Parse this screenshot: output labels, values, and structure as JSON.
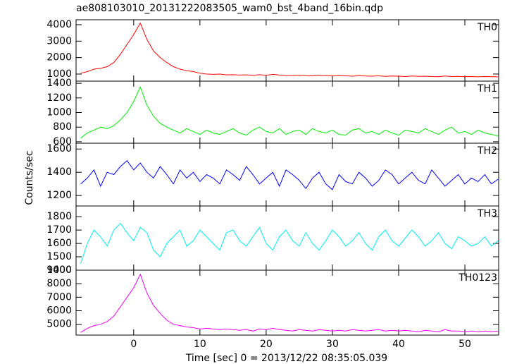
{
  "chart_data": [
    {
      "type": "line",
      "title": "ae808103010_20131222083505_wam0_bst_4band_16bin.qdp",
      "label": "TH0",
      "color": "#ff0000",
      "x": [
        -8,
        -7,
        -6,
        -5,
        -4,
        -3,
        -2,
        -1,
        0,
        1,
        2,
        3,
        4,
        5,
        6,
        7,
        8,
        9,
        10,
        11,
        12,
        13,
        14,
        15,
        16,
        17,
        18,
        19,
        20,
        21,
        22,
        23,
        24,
        25,
        26,
        27,
        28,
        29,
        30,
        31,
        32,
        33,
        34,
        35,
        36,
        37,
        38,
        39,
        40,
        41,
        42,
        43,
        44,
        45,
        46,
        47,
        48,
        49,
        50,
        51,
        52,
        53,
        54,
        55
      ],
      "values": [
        1050,
        1150,
        1300,
        1350,
        1450,
        1700,
        2200,
        2800,
        3400,
        4100,
        3100,
        2400,
        2000,
        1700,
        1450,
        1300,
        1200,
        1150,
        1050,
        1000,
        980,
        1000,
        950,
        960,
        940,
        950,
        920,
        960,
        930,
        980,
        940,
        910,
        900,
        930,
        900,
        890,
        920,
        900,
        880,
        910,
        890,
        870,
        900,
        880,
        870,
        890,
        860,
        880,
        870,
        850,
        880,
        860,
        870,
        850,
        840,
        880,
        850,
        860,
        840,
        850,
        830,
        850,
        840,
        830
      ],
      "ylim": [
        570,
        4300
      ],
      "yticks": [
        1000,
        2000,
        3000,
        4000
      ]
    },
    {
      "type": "line",
      "label": "TH1",
      "color": "#00ee00",
      "x": [
        -8,
        -7,
        -6,
        -5,
        -4,
        -3,
        -2,
        -1,
        0,
        1,
        2,
        3,
        4,
        5,
        6,
        7,
        8,
        9,
        10,
        11,
        12,
        13,
        14,
        15,
        16,
        17,
        18,
        19,
        20,
        21,
        22,
        23,
        24,
        25,
        26,
        27,
        28,
        29,
        30,
        31,
        32,
        33,
        34,
        35,
        36,
        37,
        38,
        39,
        40,
        41,
        42,
        43,
        44,
        45,
        46,
        47,
        48,
        49,
        50,
        51,
        52,
        53,
        54,
        55
      ],
      "values": [
        650,
        720,
        760,
        800,
        780,
        820,
        900,
        1000,
        1150,
        1350,
        1100,
        950,
        850,
        800,
        760,
        720,
        780,
        740,
        700,
        760,
        720,
        700,
        740,
        780,
        720,
        690,
        760,
        800,
        740,
        720,
        780,
        700,
        740,
        760,
        700,
        780,
        740,
        720,
        760,
        700,
        690,
        760,
        780,
        720,
        740,
        700,
        760,
        720,
        690,
        760,
        740,
        720,
        780,
        740,
        700,
        760,
        800,
        720,
        740,
        700,
        760,
        720,
        700,
        680
      ],
      "ylim": [
        580,
        1430
      ],
      "yticks": [
        600,
        800,
        1000,
        1200,
        1400
      ]
    },
    {
      "type": "line",
      "label": "TH2",
      "color": "#0000ff",
      "ylabel": "Counts/sec",
      "x": [
        -8,
        -7,
        -6,
        -5,
        -4,
        -3,
        -2,
        -1,
        0,
        1,
        2,
        3,
        4,
        5,
        6,
        7,
        8,
        9,
        10,
        11,
        12,
        13,
        14,
        15,
        16,
        17,
        18,
        19,
        20,
        21,
        22,
        23,
        24,
        25,
        26,
        27,
        28,
        29,
        30,
        31,
        32,
        33,
        34,
        35,
        36,
        37,
        38,
        39,
        40,
        41,
        42,
        43,
        44,
        45,
        46,
        47,
        48,
        49,
        50,
        51,
        52,
        53,
        54,
        55
      ],
      "values": [
        1300,
        1350,
        1420,
        1280,
        1400,
        1380,
        1450,
        1500,
        1420,
        1480,
        1400,
        1350,
        1450,
        1380,
        1300,
        1420,
        1350,
        1400,
        1320,
        1380,
        1350,
        1300,
        1420,
        1380,
        1330,
        1450,
        1380,
        1300,
        1350,
        1400,
        1280,
        1420,
        1380,
        1330,
        1260,
        1350,
        1400,
        1300,
        1250,
        1380,
        1320,
        1300,
        1400,
        1350,
        1280,
        1330,
        1420,
        1380,
        1300,
        1350,
        1400,
        1330,
        1300,
        1420,
        1350,
        1280,
        1330,
        1380,
        1300,
        1350,
        1320,
        1380,
        1300,
        1340
      ],
      "ylim": [
        1110,
        1650
      ],
      "yticks": [
        1200,
        1400,
        1600
      ]
    },
    {
      "type": "line",
      "label": "TH3",
      "color": "#00eeee",
      "x": [
        -8,
        -7,
        -6,
        -5,
        -4,
        -3,
        -2,
        -1,
        0,
        1,
        2,
        3,
        4,
        5,
        6,
        7,
        8,
        9,
        10,
        11,
        12,
        13,
        14,
        15,
        16,
        17,
        18,
        19,
        20,
        21,
        22,
        23,
        24,
        25,
        26,
        27,
        28,
        29,
        30,
        31,
        32,
        33,
        34,
        35,
        36,
        37,
        38,
        39,
        40,
        41,
        42,
        43,
        44,
        45,
        46,
        47,
        48,
        49,
        50,
        51,
        52,
        53,
        54,
        55
      ],
      "values": [
        1450,
        1600,
        1700,
        1650,
        1580,
        1700,
        1750,
        1680,
        1620,
        1720,
        1680,
        1550,
        1500,
        1600,
        1650,
        1700,
        1580,
        1620,
        1700,
        1650,
        1600,
        1550,
        1680,
        1700,
        1620,
        1580,
        1650,
        1720,
        1600,
        1550,
        1650,
        1700,
        1620,
        1580,
        1680,
        1600,
        1550,
        1620,
        1700,
        1650,
        1580,
        1620,
        1680,
        1600,
        1550,
        1650,
        1700,
        1620,
        1580,
        1640,
        1700,
        1650,
        1580,
        1620,
        1680,
        1600,
        1560,
        1650,
        1620,
        1580,
        1600,
        1650,
        1580,
        1620
      ],
      "ylim": [
        1400,
        1880
      ],
      "yticks": [
        1400,
        1500,
        1600,
        1700,
        1800
      ]
    },
    {
      "type": "line",
      "label": "TH0123",
      "color": "#ee00ee",
      "xlabel": "Time [sec] 0 = 2013/12/22 08:35:05.039",
      "x": [
        -8,
        -7,
        -6,
        -5,
        -4,
        -3,
        -2,
        -1,
        0,
        1,
        2,
        3,
        4,
        5,
        6,
        7,
        8,
        9,
        10,
        11,
        12,
        13,
        14,
        15,
        16,
        17,
        18,
        19,
        20,
        21,
        22,
        23,
        24,
        25,
        26,
        27,
        28,
        29,
        30,
        31,
        32,
        33,
        34,
        35,
        36,
        37,
        38,
        39,
        40,
        41,
        42,
        43,
        44,
        45,
        46,
        47,
        48,
        49,
        50,
        51,
        52,
        53,
        54,
        55
      ],
      "values": [
        4400,
        4700,
        4900,
        5000,
        5200,
        5600,
        6300,
        7000,
        7700,
        8700,
        7300,
        6400,
        5800,
        5300,
        5000,
        4900,
        4800,
        4750,
        4650,
        4700,
        4650,
        4600,
        4650,
        4600,
        4550,
        4600,
        4500,
        4650,
        4600,
        4700,
        4600,
        4550,
        4500,
        4600,
        4550,
        4500,
        4600,
        4550,
        4500,
        4550,
        4500,
        4600,
        4550,
        4500,
        4550,
        4600,
        4500,
        4550,
        4500,
        4550,
        4500,
        4450,
        4550,
        4500,
        4450,
        4600,
        4500,
        4500,
        4450,
        4500,
        4450,
        4500,
        4450,
        4500
      ],
      "ylim": [
        4200,
        9000
      ],
      "yticks": [
        5000,
        6000,
        7000,
        8000,
        9000
      ],
      "xlim": [
        -8.7,
        55.1
      ],
      "xticks": [
        0,
        10,
        20,
        30,
        40,
        50
      ]
    }
  ]
}
